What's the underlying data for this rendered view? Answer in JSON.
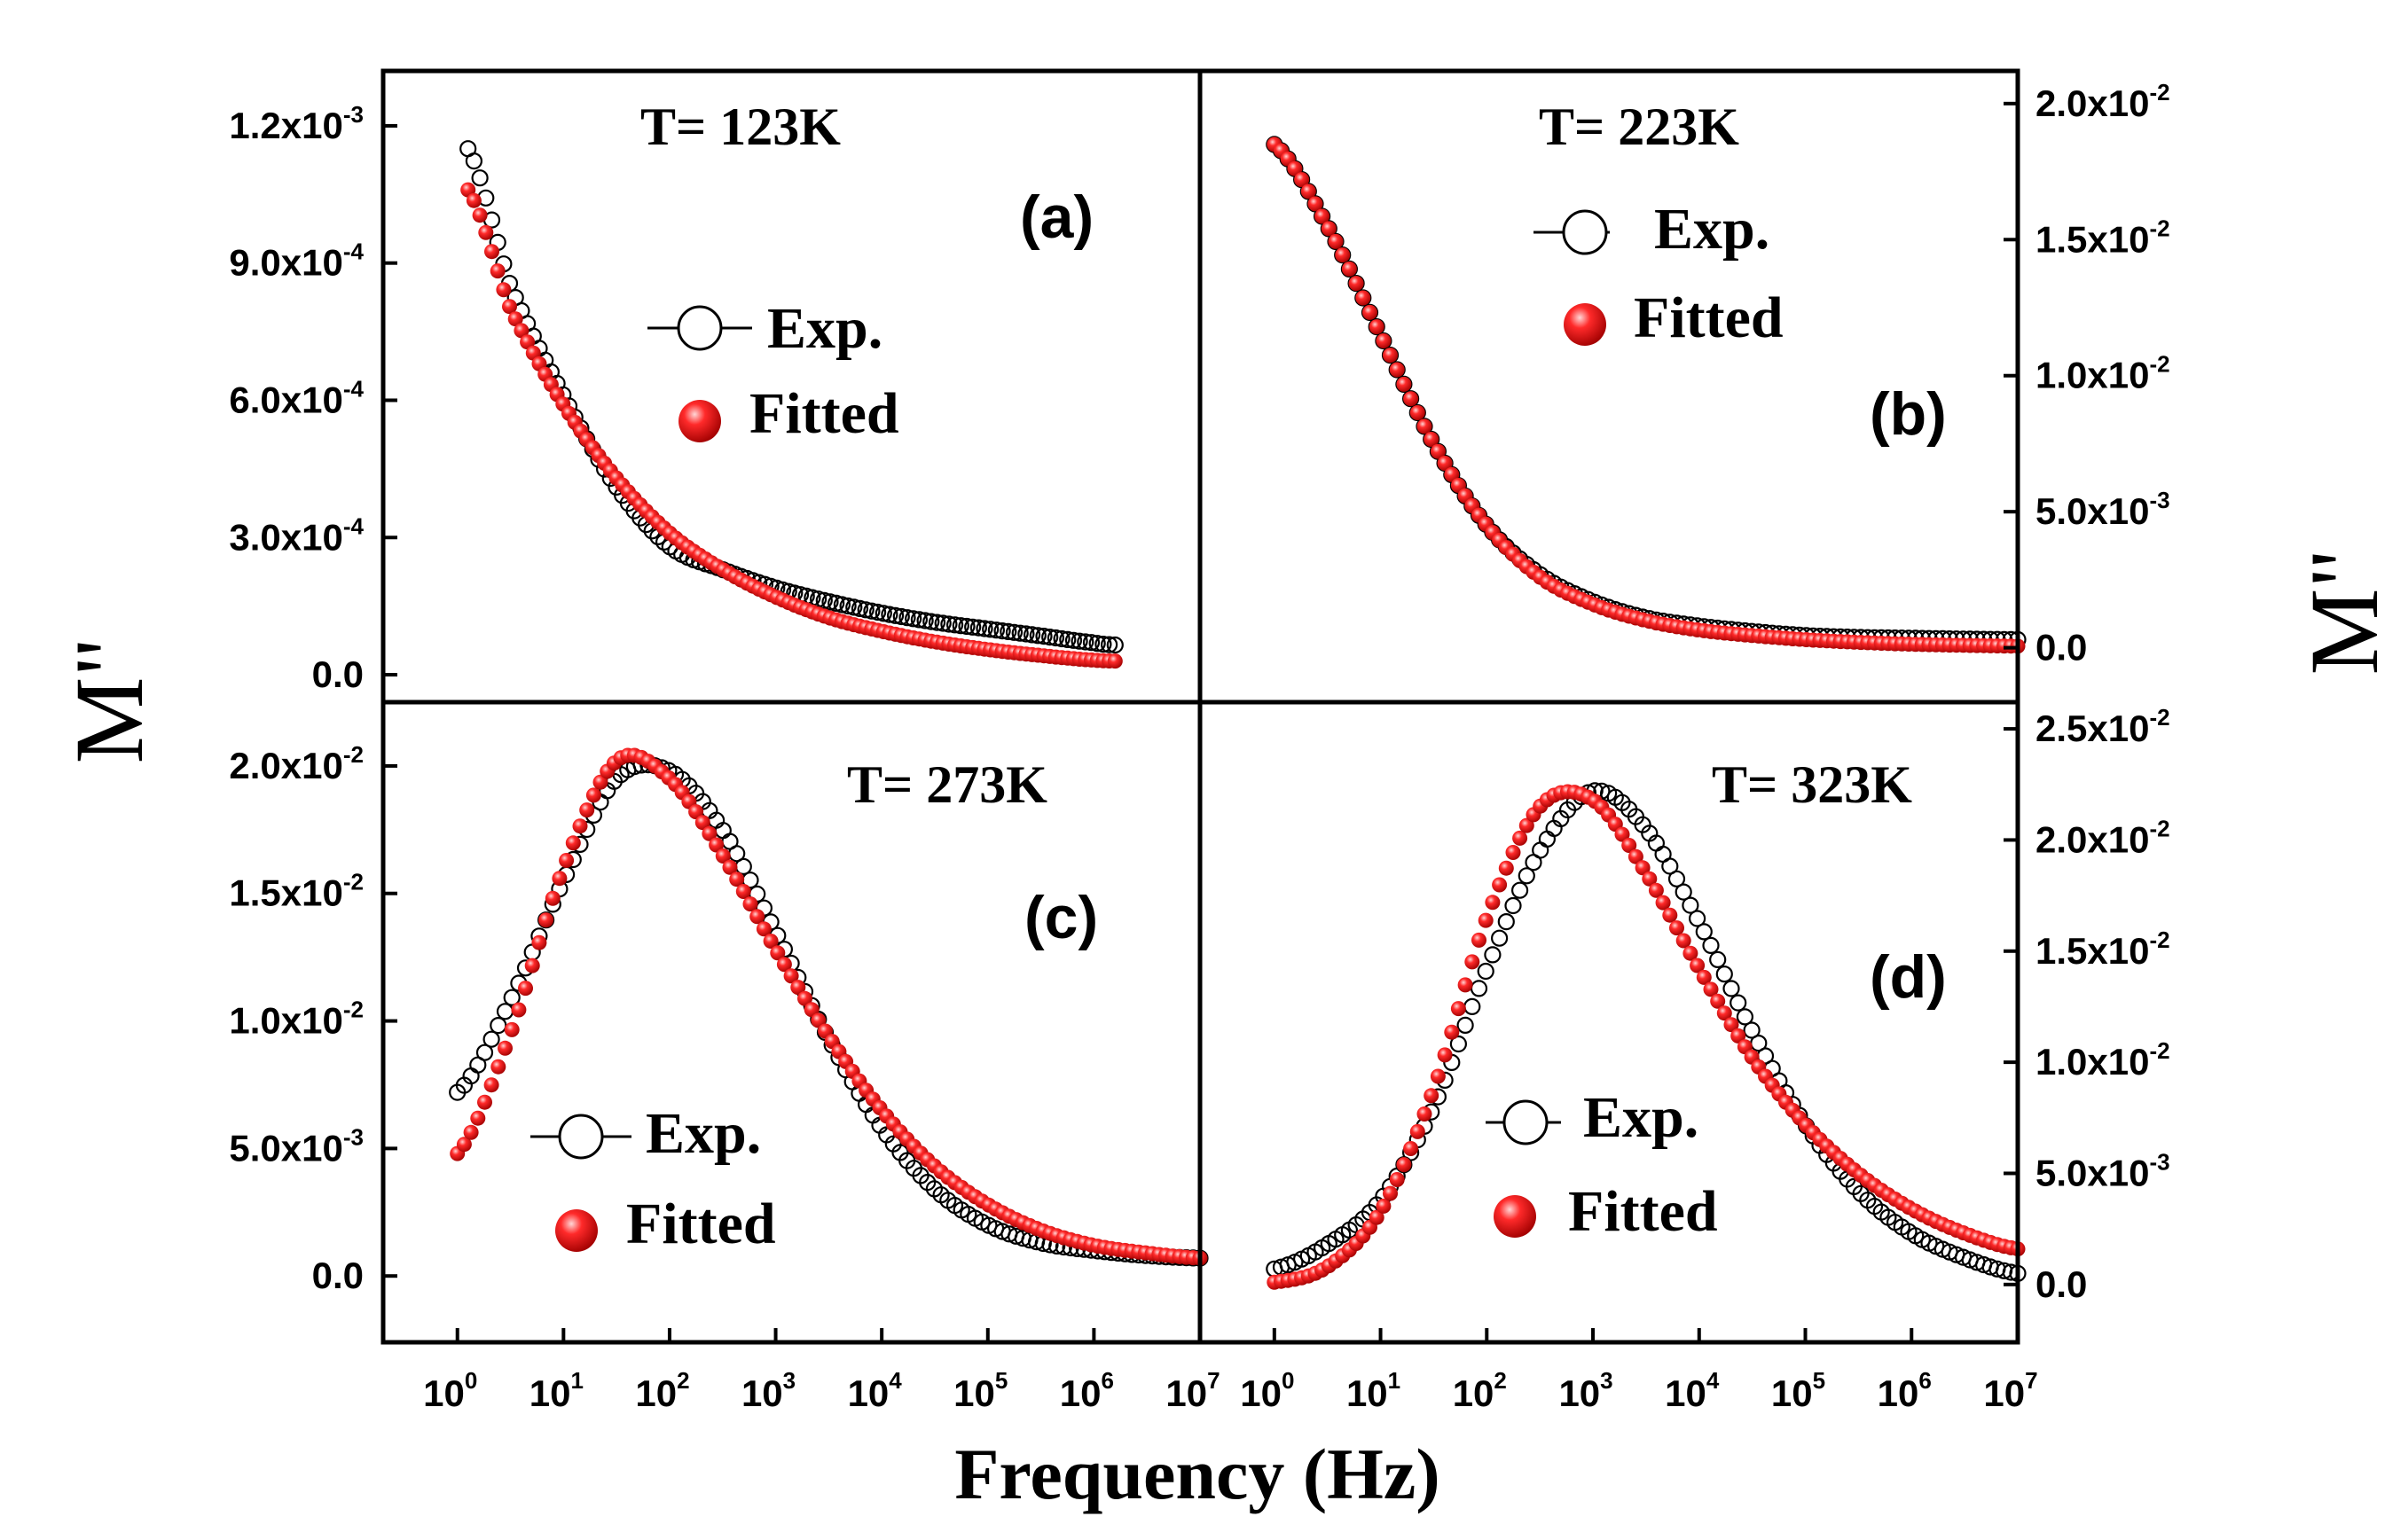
{
  "x_axis_title": "Frequency (Hz)",
  "y_axis_title_left": "M\"",
  "y_axis_title_right": "M\"",
  "colors": {
    "fitted": "#ff1a1a",
    "fitted_dark": "#b30000",
    "exp": "#000000"
  },
  "x_ticks": [
    {
      "base": "10",
      "exp": "0",
      "value": 0
    },
    {
      "base": "10",
      "exp": "1",
      "value": 1
    },
    {
      "base": "10",
      "exp": "2",
      "value": 2
    },
    {
      "base": "10",
      "exp": "3",
      "value": 3
    },
    {
      "base": "10",
      "exp": "4",
      "value": 4
    },
    {
      "base": "10",
      "exp": "5",
      "value": 5
    },
    {
      "base": "10",
      "exp": "6",
      "value": 6
    },
    {
      "base": "10",
      "exp": "7",
      "value": 7
    }
  ],
  "chart_data": [
    {
      "panel": "a",
      "type": "scatter",
      "title": "T= 123K",
      "tag": "(a)",
      "xscale": "log",
      "xlim": [
        -0.7,
        7
      ],
      "ylim": [
        -6e-05,
        0.00132
      ],
      "yticks": [
        {
          "value": 0.0,
          "label": "0.0",
          "exp": ""
        },
        {
          "value": 0.0003,
          "label": "3.0x10",
          "exp": "-4"
        },
        {
          "value": 0.0006,
          "label": "6.0x10",
          "exp": "-4"
        },
        {
          "value": 0.0009,
          "label": "9.0x10",
          "exp": "-4"
        },
        {
          "value": 0.0012,
          "label": "1.2x10",
          "exp": "-3"
        }
      ],
      "legend": {
        "exp": "Exp.",
        "fitted": "Fitted"
      },
      "series": [
        {
          "name": "Exp.",
          "log_f": [
            0.1,
            0.5,
            1.0,
            1.5,
            2.0,
            2.5,
            3.0,
            3.5,
            4.0,
            4.5,
            5.0,
            5.5,
            6.0,
            6.2
          ],
          "values": [
            0.00115,
            0.00085,
            0.00061,
            0.00041,
            0.00028,
            0.00023,
            0.00019,
            0.00016,
            0.000135,
            0.000115,
            0.0001,
            8.5e-05,
            7e-05,
            6.5e-05
          ]
        },
        {
          "name": "Fitted",
          "log_f": [
            0.1,
            0.5,
            1.0,
            1.5,
            2.0,
            2.5,
            3.0,
            3.5,
            4.0,
            4.5,
            5.0,
            5.5,
            6.0,
            6.2
          ],
          "values": [
            0.00106,
            0.0008,
            0.00059,
            0.00043,
            0.00031,
            0.00023,
            0.00017,
            0.000125,
            9.5e-05,
            7.2e-05,
            5.5e-05,
            4.2e-05,
            3.2e-05,
            3e-05
          ]
        }
      ]
    },
    {
      "panel": "b",
      "type": "scatter",
      "title": "T= 223K",
      "tag": "(b)",
      "xscale": "log",
      "xlim": [
        -0.7,
        7
      ],
      "ylim": [
        -0.002,
        0.0212
      ],
      "yticks": [
        {
          "value": 0.0,
          "label": "0.0",
          "exp": ""
        },
        {
          "value": 0.005,
          "label": "5.0x10",
          "exp": "-3"
        },
        {
          "value": 0.01,
          "label": "1.0x10",
          "exp": "-2"
        },
        {
          "value": 0.015,
          "label": "1.5x10",
          "exp": "-2"
        },
        {
          "value": 0.02,
          "label": "2.0x10",
          "exp": "-2"
        }
      ],
      "legend": {
        "exp": "Exp.",
        "fitted": "Fitted"
      },
      "series": [
        {
          "name": "Exp.",
          "log_f": [
            0.0,
            0.5,
            1.0,
            1.5,
            2.0,
            2.5,
            3.0,
            3.5,
            4.0,
            4.5,
            5.0,
            5.5,
            6.0,
            6.5,
            7.0
          ],
          "values": [
            0.0185,
            0.0155,
            0.0115,
            0.0075,
            0.0045,
            0.0027,
            0.0017,
            0.0011,
            0.0008,
            0.0006,
            0.00045,
            0.00038,
            0.00035,
            0.00032,
            0.0003
          ]
        },
        {
          "name": "Fitted",
          "log_f": [
            0.0,
            0.5,
            1.0,
            1.5,
            2.0,
            2.5,
            3.0,
            3.5,
            4.0,
            4.5,
            5.0,
            5.5,
            6.0,
            6.5,
            7.0
          ],
          "values": [
            0.0185,
            0.0155,
            0.0115,
            0.0075,
            0.0045,
            0.0026,
            0.0016,
            0.001,
            0.00065,
            0.00045,
            0.0003,
            0.0002,
            0.00013,
            9e-05,
            6e-05
          ]
        }
      ]
    },
    {
      "panel": "c",
      "type": "scatter",
      "title": "T= 273K",
      "tag": "(c)",
      "xscale": "log",
      "xlim": [
        -0.7,
        7
      ],
      "ylim": [
        -0.0026,
        0.0225
      ],
      "yticks": [
        {
          "value": 0.0,
          "label": "0.0",
          "exp": ""
        },
        {
          "value": 0.005,
          "label": "5.0x10",
          "exp": "-3"
        },
        {
          "value": 0.01,
          "label": "1.0x10",
          "exp": "-2"
        },
        {
          "value": 0.015,
          "label": "1.5x10",
          "exp": "-2"
        },
        {
          "value": 0.02,
          "label": "2.0x10",
          "exp": "-2"
        }
      ],
      "legend": {
        "exp": "Exp.",
        "fitted": "Fitted"
      },
      "series": [
        {
          "name": "Exp.",
          "log_f": [
            0.0,
            0.5,
            1.0,
            1.5,
            2.0,
            2.5,
            3.0,
            3.5,
            4.0,
            4.5,
            5.0,
            5.5,
            6.0,
            6.5,
            7.0
          ],
          "values": [
            0.0072,
            0.0108,
            0.0155,
            0.0195,
            0.0198,
            0.0175,
            0.0135,
            0.0093,
            0.0058,
            0.0034,
            0.002,
            0.0013,
            0.001,
            0.0008,
            0.0007
          ]
        },
        {
          "name": "Fitted",
          "log_f": [
            0.0,
            0.5,
            1.0,
            1.5,
            2.0,
            2.5,
            3.0,
            3.5,
            4.0,
            4.5,
            5.0,
            5.5,
            6.0,
            6.5,
            7.0
          ],
          "values": [
            0.0048,
            0.0095,
            0.016,
            0.0202,
            0.0195,
            0.0165,
            0.0128,
            0.0094,
            0.0065,
            0.0043,
            0.0028,
            0.0018,
            0.0012,
            0.0009,
            0.0007
          ]
        }
      ]
    },
    {
      "panel": "d",
      "type": "scatter",
      "title": "T= 323K",
      "tag": "(d)",
      "xscale": "log",
      "xlim": [
        -0.7,
        7
      ],
      "ylim": [
        -0.0026,
        0.0262
      ],
      "yticks": [
        {
          "value": 0.0,
          "label": "0.0",
          "exp": ""
        },
        {
          "value": 0.005,
          "label": "5.0x10",
          "exp": "-3"
        },
        {
          "value": 0.01,
          "label": "1.0x10",
          "exp": "-2"
        },
        {
          "value": 0.015,
          "label": "1.5x10",
          "exp": "-2"
        },
        {
          "value": 0.02,
          "label": "2.0x10",
          "exp": "-2"
        },
        {
          "value": 0.025,
          "label": "2.5x10",
          "exp": "-2"
        }
      ],
      "legend": {
        "exp": "Exp.",
        "fitted": "Fitted"
      },
      "series": [
        {
          "name": "Exp.",
          "log_f": [
            0.0,
            0.5,
            1.0,
            1.5,
            2.0,
            2.5,
            3.0,
            3.5,
            4.0,
            4.5,
            5.0,
            5.5,
            6.0,
            6.5,
            7.0
          ],
          "values": [
            0.0007,
            0.0018,
            0.0038,
            0.008,
            0.0142,
            0.0195,
            0.0222,
            0.0205,
            0.0163,
            0.0114,
            0.0072,
            0.0042,
            0.0023,
            0.0012,
            0.0005
          ]
        },
        {
          "name": "Fitted",
          "log_f": [
            0.0,
            0.5,
            1.0,
            1.5,
            2.0,
            2.5,
            3.0,
            3.5,
            4.0,
            4.5,
            5.0,
            5.5,
            6.0,
            6.5,
            7.0
          ],
          "values": [
            0.0001,
            0.0008,
            0.0033,
            0.0088,
            0.0165,
            0.0215,
            0.0218,
            0.0185,
            0.0142,
            0.0102,
            0.0072,
            0.005,
            0.0034,
            0.0023,
            0.0016
          ]
        }
      ]
    }
  ]
}
